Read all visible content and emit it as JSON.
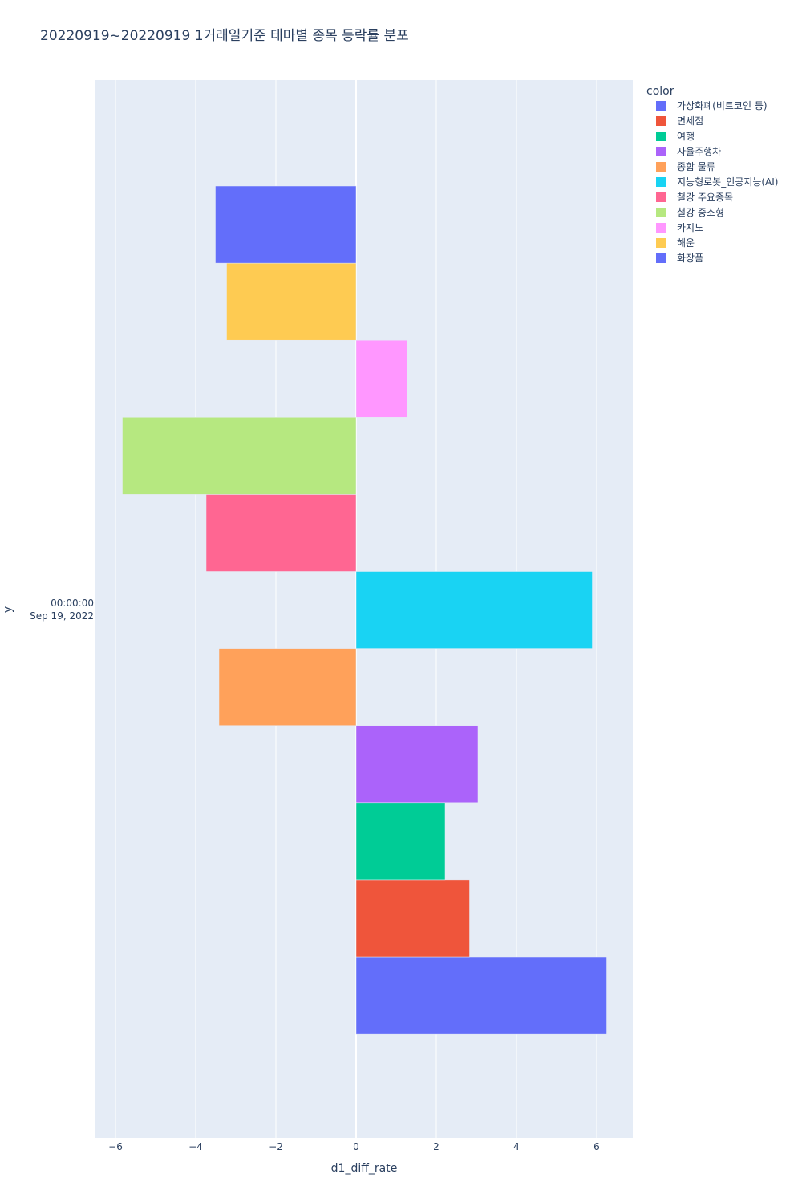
{
  "chart_data": {
    "type": "bar",
    "orientation": "horizontal",
    "barmode": "group",
    "title": "20220919~20220919 1거래일기준 테마별 종목 등락률 분포",
    "xlabel": "d1_diff_rate",
    "ylabel": "y",
    "y_category": [
      "00:00:00",
      "Sep 19, 2022"
    ],
    "xlim": [
      -6.5,
      6.9
    ],
    "xticks": [
      -6,
      -4,
      -2,
      0,
      2,
      4,
      6
    ],
    "grid": true,
    "legend_title": "color",
    "legend_position": "right",
    "series": [
      {
        "name": "가상화폐(비트코인 등)",
        "value": 6.25,
        "color": "#636efa"
      },
      {
        "name": "면세점",
        "value": 2.83,
        "color": "#ef553b"
      },
      {
        "name": "여행",
        "value": 2.22,
        "color": "#00cc96"
      },
      {
        "name": "자율주행차",
        "value": 3.04,
        "color": "#ab63fa"
      },
      {
        "name": "종합 물류",
        "value": -3.42,
        "color": "#ffa15a"
      },
      {
        "name": "지능형로봇_인공지능(AI)",
        "value": 5.89,
        "color": "#19d3f3"
      },
      {
        "name": "철강 주요종목",
        "value": -3.74,
        "color": "#ff6692"
      },
      {
        "name": "철강 중소형",
        "value": -5.83,
        "color": "#b6e880"
      },
      {
        "name": "카지노",
        "value": 1.27,
        "color": "#ff97ff"
      },
      {
        "name": "해운",
        "value": -3.23,
        "color": "#fecb52"
      },
      {
        "name": "화장품",
        "value": -3.51,
        "color": "#636efa"
      }
    ]
  }
}
